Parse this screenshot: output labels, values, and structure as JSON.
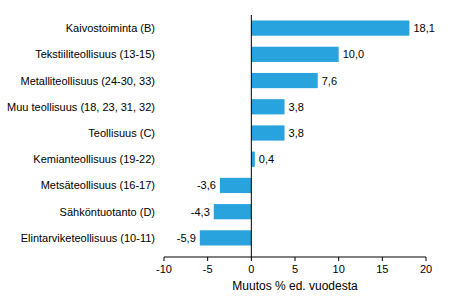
{
  "chart_data": {
    "type": "bar",
    "orientation": "horizontal",
    "categories": [
      "Kaivostoiminta (B)",
      "Tekstiiliteollisuus (13-15)",
      "Metalliteollisuus (24-30, 33)",
      "Muu teollisuus (18, 23, 31, 32)",
      "Teollisuus (C)",
      "Kemianteollisuus (19-22)",
      "Metsäteollisuus (16-17)",
      "Sähköntuotanto (D)",
      "Elintarviketeollisuus (10-11)"
    ],
    "values": [
      18.1,
      10.0,
      7.6,
      3.8,
      3.8,
      0.4,
      -3.6,
      -4.3,
      -5.9
    ],
    "value_labels": [
      "18,1",
      "10,0",
      "7,6",
      "3,8",
      "3,8",
      "0,4",
      "-3,6",
      "-4,3",
      "-5,9"
    ],
    "data_labels": true,
    "color": "#29a3dd",
    "x_label": "Muutos % ed. vuodesta",
    "xlim": [
      -10,
      20
    ],
    "xticks": [
      -10,
      -5,
      0,
      5,
      10,
      15,
      20
    ],
    "grid": false
  }
}
